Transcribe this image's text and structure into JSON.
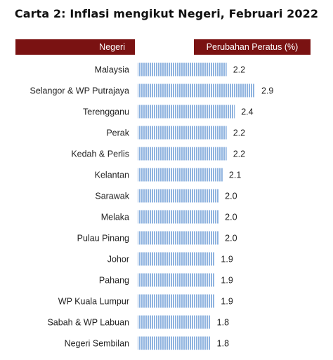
{
  "title": "Carta 2: Inflasi mengikut Negeri, Februari 2022",
  "header": {
    "category_label": "Negeri",
    "value_label": "Perubahan Peratus (%)"
  },
  "colors": {
    "header_bg": "#7a1212",
    "bar_stripe": "#8fb3df",
    "bar_gap": "#ffffff"
  },
  "chart_data": {
    "type": "bar",
    "orientation": "horizontal",
    "categories": [
      "Malaysia",
      "Selangor & WP Putrajaya",
      "Terengganu",
      "Perak",
      "Kedah & Perlis",
      "Kelantan",
      "Sarawak",
      "Melaka",
      "Pulau Pinang",
      "Johor",
      "Pahang",
      "WP Kuala Lumpur",
      "Sabah & WP Labuan",
      "Negeri Sembilan"
    ],
    "values": [
      2.2,
      2.9,
      2.4,
      2.2,
      2.2,
      2.1,
      2.0,
      2.0,
      2.0,
      1.9,
      1.9,
      1.9,
      1.8,
      1.8
    ],
    "value_labels": [
      "2.2",
      "2.9",
      "2.4",
      "2.2",
      "2.2",
      "2.1",
      "2.0",
      "2.0",
      "2.0",
      "1.9",
      "1.9",
      "1.9",
      "1.8",
      "1.8"
    ],
    "xlim": [
      0,
      2.9
    ],
    "grid": false,
    "legend": "none"
  }
}
